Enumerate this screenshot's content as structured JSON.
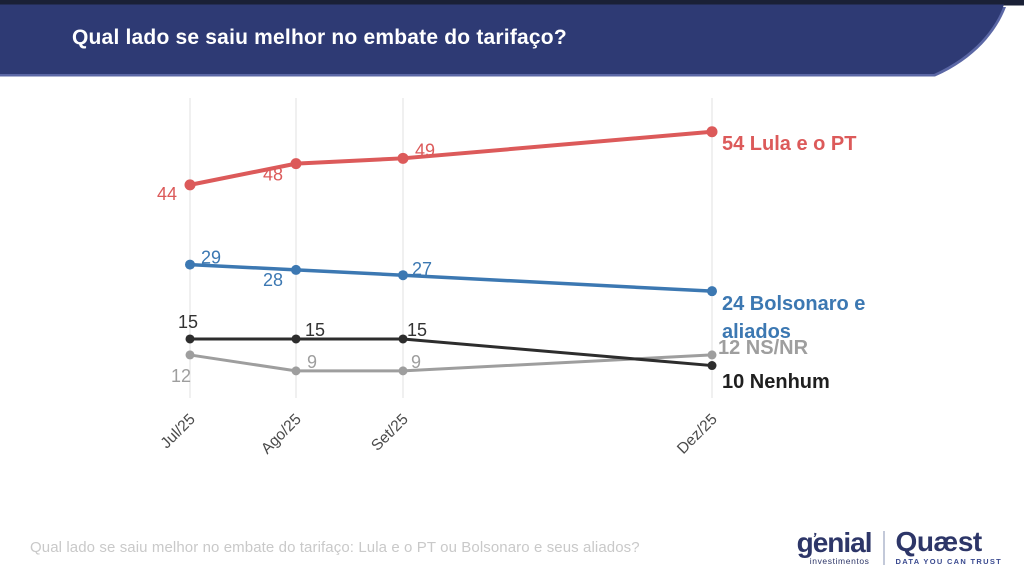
{
  "header": {
    "title": "Qual lado se saiu melhor no embate do tarifaço?"
  },
  "chart_data": {
    "type": "line",
    "title": "Qual lado se saiu melhor no embate do tarifaço?",
    "categories": [
      "Jul/25",
      "Ago/25",
      "Set/25",
      "Dez/25"
    ],
    "series": [
      {
        "name": "Lula e o PT",
        "values": [
          44,
          48,
          49,
          54
        ],
        "color": "#dc5a5a",
        "end_label_lines": [
          "54 Lula e o PT"
        ]
      },
      {
        "name": "Bolsonaro e aliados",
        "values": [
          29,
          28,
          27,
          24
        ],
        "color": "#3c78b2",
        "end_label_lines": [
          "24 Bolsonaro e",
          "aliados"
        ]
      },
      {
        "name": "Nenhum",
        "values": [
          15,
          15,
          15,
          10
        ],
        "color": "#2d2d2d",
        "end_label_lines": [
          "10 Nenhum"
        ]
      },
      {
        "name": "NS/NR",
        "values": [
          12,
          9,
          9,
          12
        ],
        "color": "#9e9e9e",
        "end_label_lines": [
          "12 NS/NR"
        ]
      }
    ],
    "ylim": [
      0,
      60
    ],
    "y_axis_visible": false,
    "grid": "vertical-only",
    "legend_position": "end-of-line-labels",
    "point_labels_visible": true
  },
  "footer": {
    "source_text": "Qual lado se saiu melhor no embate do tarifaço: Lula e o PT ou Bolsonaro e seus aliados?"
  },
  "branding": {
    "genial": {
      "name": "genial",
      "accent_mark": "’",
      "subtitle": "investimentos"
    },
    "quaest": {
      "name": "Quæst",
      "subtitle": "DATA YOU CAN TRUST"
    }
  },
  "colors": {
    "banner": "#2e3a74",
    "banner_top_strip": "#1a2036",
    "banner_edge_highlight": "#5b67a5",
    "grid_line": "#ebebeb",
    "axis_label": "#4a4a4a",
    "source_text": "#c9c9c9",
    "logo_navy": "#2d3668"
  }
}
